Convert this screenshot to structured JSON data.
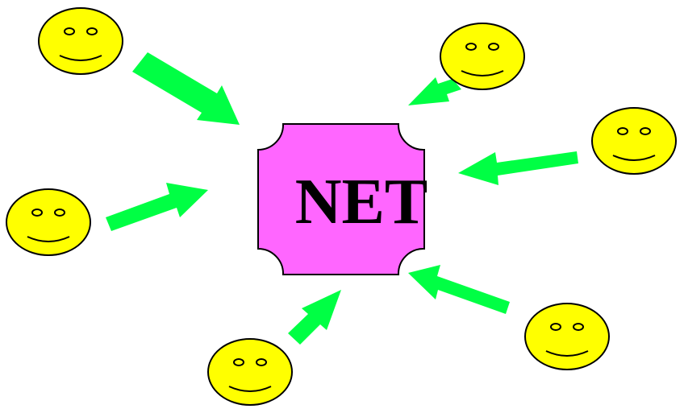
{
  "center": {
    "label": "NET",
    "fill": "#ff66ff",
    "stroke": "#000000",
    "text_color": "#000000"
  },
  "smiley": {
    "fill": "#ffff00",
    "stroke": "#000000",
    "icon": "smiley-face-icon"
  },
  "arrow": {
    "color": "#00ff44",
    "direction": "toward-center",
    "icon": "arrow-icon"
  },
  "background": "#ffffff",
  "nodes": [
    {
      "id": "top-left"
    },
    {
      "id": "top-right"
    },
    {
      "id": "right"
    },
    {
      "id": "left"
    },
    {
      "id": "bottom-right"
    },
    {
      "id": "bottom-left"
    }
  ]
}
